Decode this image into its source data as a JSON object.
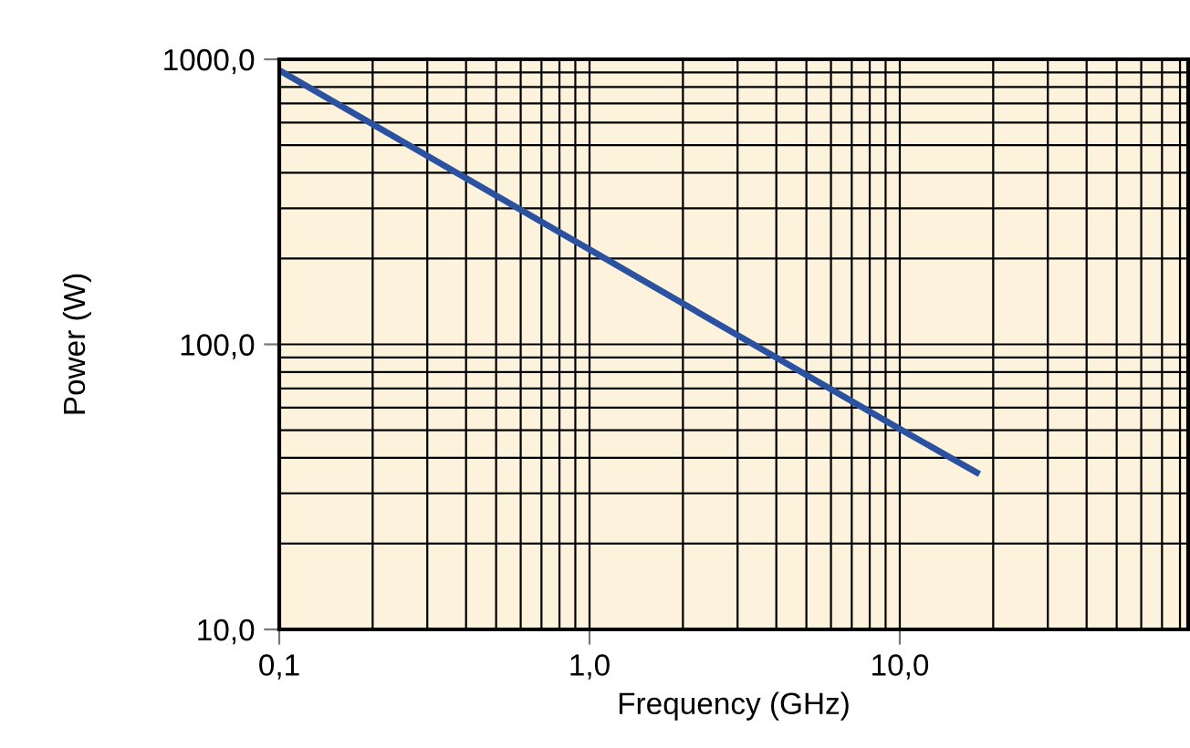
{
  "chart_data": {
    "type": "line",
    "xlabel": "Frequency (GHz)",
    "ylabel": "Power (W)",
    "log": "xy",
    "grid": true,
    "x": [
      0.1,
      1,
      10,
      17.7
    ],
    "series": [
      {
        "color": "#2b52a0",
        "values": [
          915,
          215,
          50.5,
          35.5
        ]
      }
    ],
    "xlim": [
      0.1,
      85
    ],
    "ylim": [
      10,
      1000
    ],
    "xticks": [
      {
        "value": 0.1,
        "label": "0,1"
      },
      {
        "value": 1,
        "label": "1,0"
      },
      {
        "value": 10,
        "label": "10,0"
      }
    ],
    "yticks": [
      {
        "value": 10,
        "label": "10,0"
      },
      {
        "value": 100,
        "label": "100,0"
      },
      {
        "value": 1000,
        "label": "1000,0"
      }
    ],
    "marker": "none",
    "line_style": "solid",
    "legend": false
  }
}
